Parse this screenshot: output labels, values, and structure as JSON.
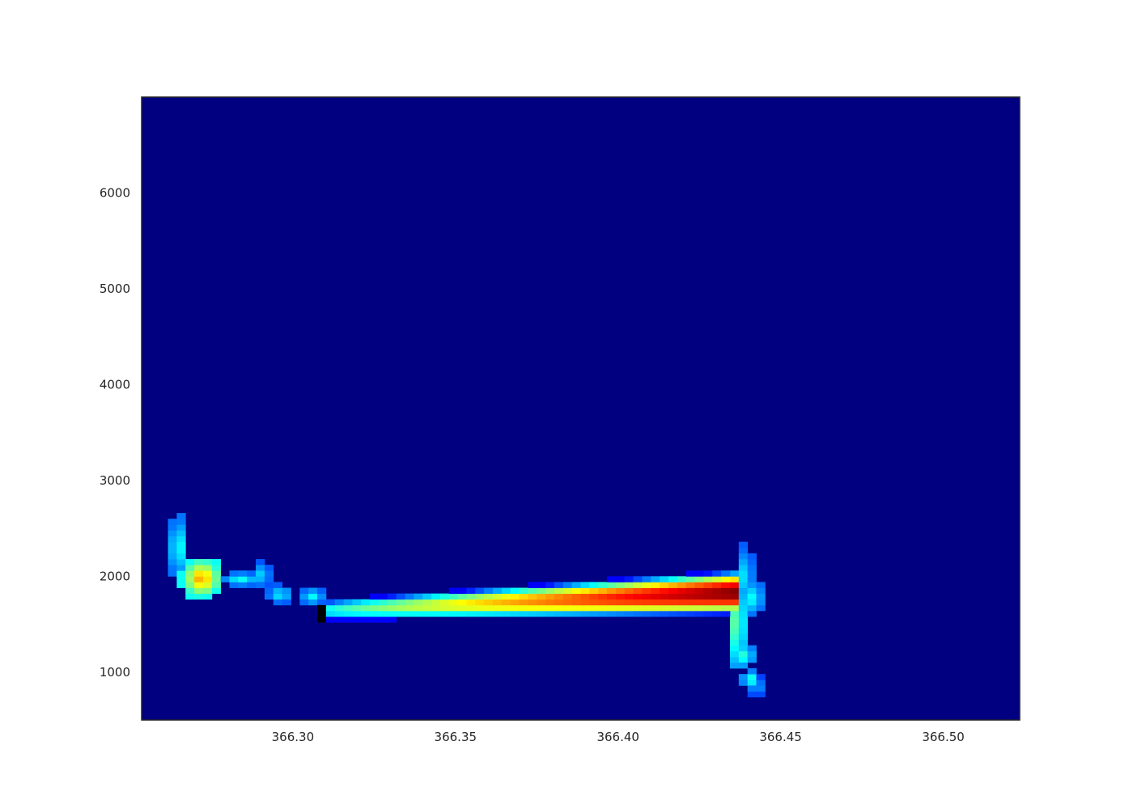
{
  "chart_data": {
    "type": "heatmap",
    "title": "",
    "xlabel": "",
    "ylabel": "",
    "xlim": [
      366.2535,
      366.5235
    ],
    "ylim": [
      500,
      7000
    ],
    "x_ticks": [
      366.3,
      366.35,
      366.4,
      366.45,
      366.5
    ],
    "x_tick_labels": [
      "366.30",
      "366.35",
      "366.40",
      "366.45",
      "366.50"
    ],
    "y_ticks": [
      1000,
      2000,
      3000,
      4000,
      5000,
      6000
    ],
    "y_tick_labels": [
      "1000",
      "2000",
      "3000",
      "4000",
      "5000",
      "6000"
    ],
    "grid": false,
    "colormap": "jet",
    "background_value": 0,
    "background_color": "#000080",
    "frame_color": "#262626",
    "value_range": [
      0,
      1
    ],
    "x_bin_width": 0.0027,
    "y_bin_height": 60,
    "blobs": [
      {
        "x0": 366.2635,
        "x1": 366.266,
        "y0": 2000,
        "y1": 2600,
        "peak": 0.35
      },
      {
        "x0": 366.266,
        "x1": 366.278,
        "y0": 1780,
        "y1": 2180,
        "peak": 0.68
      },
      {
        "x0": 366.278,
        "x1": 366.29,
        "y0": 1900,
        "y1": 2040,
        "peak": 0.32
      },
      {
        "x0": 366.289,
        "x1": 366.292,
        "y0": 1880,
        "y1": 2150,
        "peak": 0.28
      },
      {
        "x0": 366.292,
        "x1": 366.3,
        "y0": 1720,
        "y1": 1900,
        "peak": 0.3
      },
      {
        "x0": 366.302,
        "x1": 366.31,
        "y0": 1700,
        "y1": 1880,
        "peak": 0.3
      }
    ],
    "band": {
      "x_start": 366.31,
      "x_end": 366.436,
      "center_start": 1650,
      "center_end": 1830,
      "half_width_start": 80,
      "half_width_end": 170,
      "peak_start": 0.38,
      "peak_end": 1.0
    },
    "edge": [
      {
        "x0": 366.4355,
        "x1": 366.4375,
        "y0": 1050,
        "y1": 2000,
        "peak": 0.45
      },
      {
        "x0": 366.438,
        "x1": 366.44,
        "y0": 1050,
        "y1": 1300,
        "peak": 0.38
      },
      {
        "x0": 366.438,
        "x1": 366.44,
        "y0": 1700,
        "y1": 2300,
        "peak": 0.3
      },
      {
        "x0": 366.4395,
        "x1": 366.442,
        "y0": 850,
        "y1": 1000,
        "peak": 0.38
      },
      {
        "x0": 366.4405,
        "x1": 366.443,
        "y0": 1600,
        "y1": 1950,
        "peak": 0.34
      },
      {
        "x0": 366.442,
        "x1": 366.443,
        "y0": 750,
        "y1": 950,
        "peak": 0.24
      }
    ]
  }
}
